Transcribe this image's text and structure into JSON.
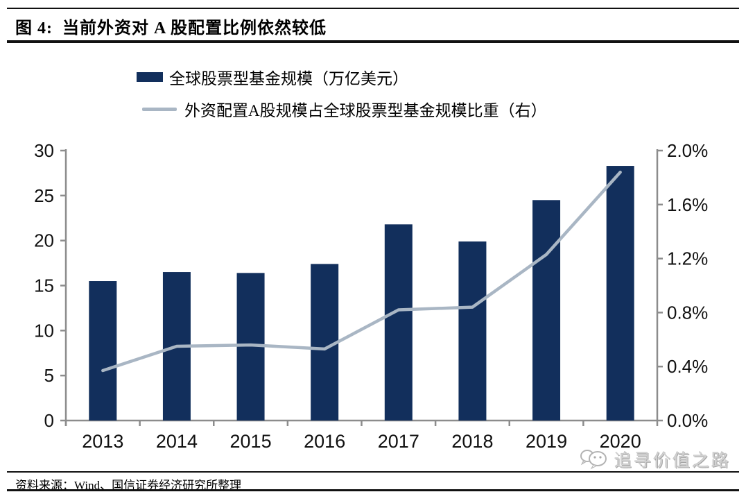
{
  "header": {
    "title": "图 4:  当前外资对 A 股配置比例依然较低"
  },
  "legend": {
    "items": [
      {
        "label": "全球股票型基金规模（万亿美元）",
        "swatch": "bar",
        "color": "#122f5c"
      },
      {
        "label": "外资配置A股规模占全球股票型基金规模比重（右）",
        "swatch": "line",
        "color": "#a9b6c4"
      }
    ]
  },
  "chart_data": {
    "type": "bar",
    "subtype": "combo-bar-line-dual-axis",
    "title": "当前外资对A股配置比例依然较低",
    "categories": [
      "2013",
      "2014",
      "2015",
      "2016",
      "2017",
      "2018",
      "2019",
      "2020"
    ],
    "series": [
      {
        "name": "全球股票型基金规模（万亿美元）",
        "type": "bar",
        "axis": "left",
        "color": "#122f5c",
        "values": [
          15.5,
          16.5,
          16.4,
          17.4,
          21.8,
          19.9,
          24.5,
          28.3
        ]
      },
      {
        "name": "外资配置A股规模占全球股票型基金规模比重（右）",
        "type": "line",
        "axis": "right",
        "color": "#a9b6c4",
        "values": [
          0.37,
          0.55,
          0.56,
          0.53,
          0.82,
          0.84,
          1.23,
          1.84
        ]
      }
    ],
    "left_axis": {
      "min": 0,
      "max": 30,
      "ticks": [
        0,
        5,
        10,
        15,
        20,
        25,
        30
      ]
    },
    "right_axis": {
      "min": 0.0,
      "max": 2.0,
      "ticks": [
        0.0,
        0.4,
        0.8,
        1.2,
        1.6,
        2.0
      ],
      "tick_labels": [
        "0.0%",
        "0.4%",
        "0.8%",
        "1.2%",
        "1.6%",
        "2.0%"
      ],
      "unit": "%"
    },
    "grid": false,
    "legend_position": "top-left",
    "xlabel": "",
    "ylabel": ""
  },
  "footer": {
    "source": "资料来源：Wind、国信证券经济研究所整理"
  },
  "watermark": {
    "text": "追寻价值之路",
    "icon": "wechat-bubbles-icon"
  },
  "colors": {
    "bar": "#122f5c",
    "line": "#a9b6c4",
    "axis": "#8c8c8c",
    "text": "#111111",
    "watermark": "#d2d2d2"
  }
}
